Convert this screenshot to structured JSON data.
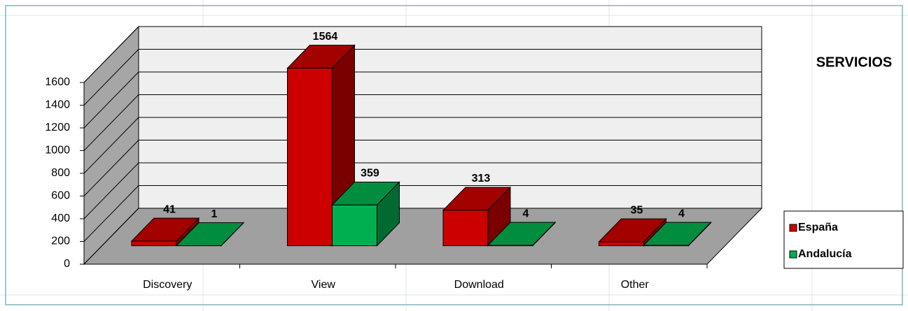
{
  "chart_data": {
    "type": "bar3d",
    "title": "SERVICIOS",
    "categories": [
      "Discovery",
      "View",
      "Download",
      "Other"
    ],
    "series": [
      {
        "name": "España",
        "color": "#cc0000",
        "values": [
          41,
          1564,
          313,
          35
        ]
      },
      {
        "name": "Andalucía",
        "color": "#00b050",
        "values": [
          1,
          359,
          4,
          4
        ]
      }
    ],
    "ylim": [
      0,
      1600
    ],
    "yticks": [
      0,
      200,
      400,
      600,
      800,
      1000,
      1200,
      1400,
      1600
    ],
    "grid": true,
    "legend": "right"
  }
}
